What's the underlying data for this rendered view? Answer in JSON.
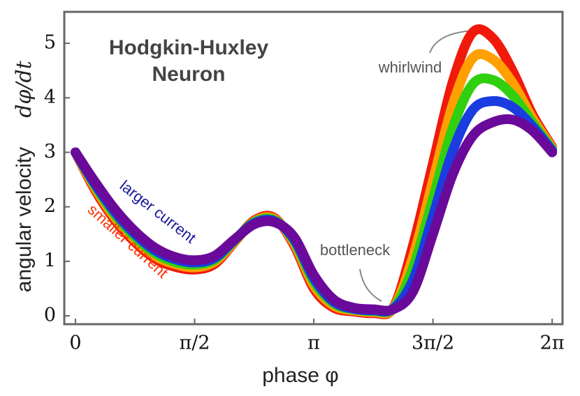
{
  "chart_data": {
    "type": "line",
    "title": [
      "Hodgkin-Huxley",
      "Neuron"
    ],
    "xlabel": "phase φ",
    "ylabel": "angular velocity",
    "ylabel_math": "dφ/dt",
    "x": [
      0,
      0.2618,
      0.5236,
      0.7854,
      1.0472,
      1.309,
      1.5708,
      1.8326,
      2.0944,
      2.3562,
      2.618,
      2.8798,
      3.1416,
      3.4034,
      3.6652,
      3.927,
      4.1888,
      4.4506,
      4.7124,
      4.9742,
      5.236,
      5.4978,
      5.7596,
      6.0214,
      6.2832
    ],
    "series": [
      {
        "color": "#f01a0a",
        "values": [
          3.0,
          2.3,
          1.75,
          1.35,
          1.05,
          0.9,
          0.85,
          0.95,
          1.35,
          1.75,
          1.8,
          1.3,
          0.5,
          0.15,
          0.08,
          0.05,
          0.15,
          1.3,
          2.8,
          4.3,
          5.2,
          5.1,
          4.5,
          3.7,
          3.1
        ]
      },
      {
        "color": "#ffa000",
        "values": [
          3.0,
          2.34,
          1.8,
          1.4,
          1.1,
          0.95,
          0.89,
          0.99,
          1.36,
          1.73,
          1.78,
          1.34,
          0.56,
          0.19,
          0.1,
          0.07,
          0.14,
          1.09,
          2.48,
          3.88,
          4.73,
          4.71,
          4.28,
          3.63,
          3.08
        ]
      },
      {
        "color": "#30d010",
        "values": [
          3.0,
          2.38,
          1.85,
          1.45,
          1.15,
          0.99,
          0.94,
          1.03,
          1.38,
          1.72,
          1.76,
          1.38,
          0.63,
          0.23,
          0.12,
          0.09,
          0.14,
          0.88,
          2.15,
          3.45,
          4.25,
          4.33,
          4.05,
          3.55,
          3.05
        ]
      },
      {
        "color": "#1a3ce0",
        "values": [
          3.0,
          2.41,
          1.9,
          1.5,
          1.2,
          1.04,
          0.98,
          1.06,
          1.39,
          1.7,
          1.74,
          1.41,
          0.69,
          0.26,
          0.13,
          0.1,
          0.13,
          0.66,
          1.83,
          3.03,
          3.78,
          3.94,
          3.83,
          3.48,
          3.03
        ]
      },
      {
        "color": "#6a0a9a",
        "values": [
          3.0,
          2.45,
          1.95,
          1.55,
          1.25,
          1.08,
          1.02,
          1.1,
          1.4,
          1.68,
          1.72,
          1.45,
          0.75,
          0.3,
          0.15,
          0.12,
          0.12,
          0.45,
          1.5,
          2.6,
          3.3,
          3.55,
          3.6,
          3.4,
          3.0
        ]
      }
    ],
    "xlim": [
      -0.147,
      6.42
    ],
    "ylim": [
      -0.153,
      5.577
    ],
    "xticks": [
      0,
      {
        "value": 1.5708,
        "label": "π/2"
      },
      {
        "value": 3.1416,
        "label": "π"
      },
      {
        "value": 4.7124,
        "label": "3π/2"
      },
      {
        "value": 6.2832,
        "label": "2π"
      }
    ],
    "yticks": [
      0,
      1,
      2,
      3,
      4,
      5
    ],
    "grid": false,
    "annotations": [
      {
        "text": "whirlwind",
        "color": "#555555"
      },
      {
        "text": "bottleneck",
        "color": "#555555"
      },
      {
        "text": "larger current",
        "color": "#1a1a9a"
      },
      {
        "text": "smaller current",
        "color": "#ff3000"
      }
    ]
  }
}
